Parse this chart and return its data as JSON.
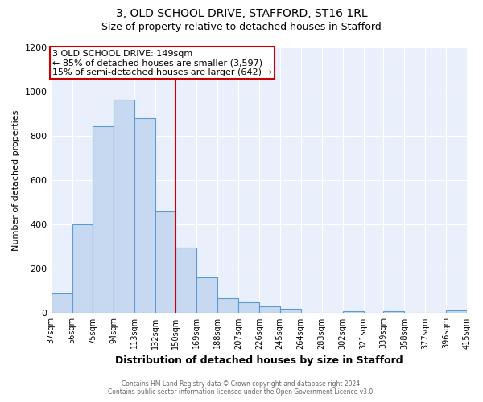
{
  "title": "3, OLD SCHOOL DRIVE, STAFFORD, ST16 1RL",
  "subtitle": "Size of property relative to detached houses in Stafford",
  "xlabel": "Distribution of detached houses by size in Stafford",
  "ylabel": "Number of detached properties",
  "bar_color": "#c6d9f0",
  "bar_edge_color": "#5b9bd5",
  "background_color": "#eaf0fb",
  "grid_color": "#ffffff",
  "marker_line_color": "#cc0000",
  "bin_edges": [
    37,
    56,
    75,
    94,
    113,
    132,
    150,
    169,
    188,
    207,
    226,
    245,
    264,
    283,
    302,
    321,
    339,
    358,
    377,
    396,
    415
  ],
  "bar_heights": [
    90,
    400,
    845,
    965,
    880,
    460,
    295,
    160,
    68,
    50,
    32,
    18,
    0,
    0,
    8,
    0,
    10,
    0,
    0,
    13
  ],
  "tick_labels": [
    "37sqm",
    "56sqm",
    "75sqm",
    "94sqm",
    "113sqm",
    "132sqm",
    "150sqm",
    "169sqm",
    "188sqm",
    "207sqm",
    "226sqm",
    "245sqm",
    "264sqm",
    "283sqm",
    "302sqm",
    "321sqm",
    "339sqm",
    "358sqm",
    "377sqm",
    "396sqm",
    "415sqm"
  ],
  "ylim": [
    0,
    1200
  ],
  "yticks": [
    0,
    200,
    400,
    600,
    800,
    1000,
    1200
  ],
  "annotation_box_title": "3 OLD SCHOOL DRIVE: 149sqm",
  "annotation_line1": "← 85% of detached houses are smaller (3,597)",
  "annotation_line2": "15% of semi-detached houses are larger (642) →",
  "annotation_box_color": "#ffffff",
  "annotation_box_edge_color": "#cc0000",
  "footer_line1": "Contains HM Land Registry data © Crown copyright and database right 2024.",
  "footer_line2": "Contains public sector information licensed under the Open Government Licence v3.0."
}
